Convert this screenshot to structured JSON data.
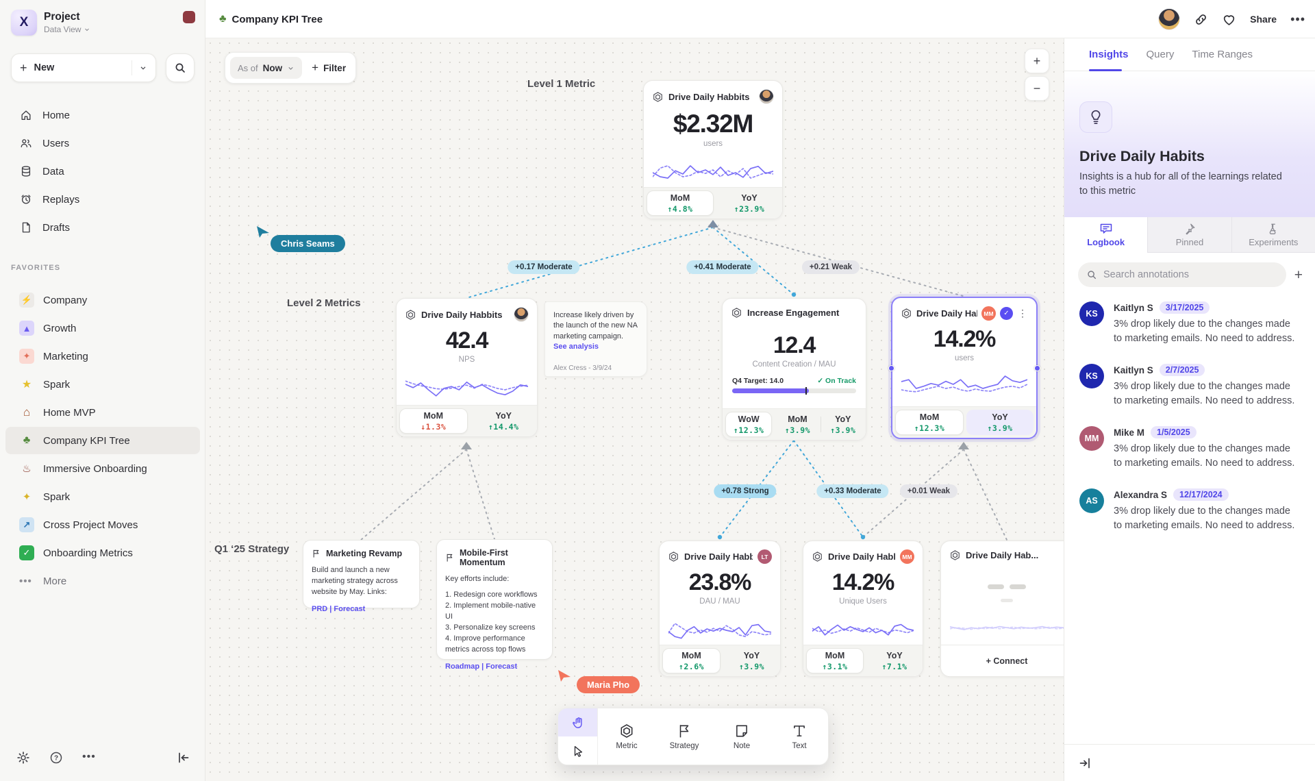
{
  "sidebar": {
    "project": "Project",
    "workspace": "Data View",
    "new_label": "New",
    "nav": [
      {
        "icon": "home",
        "label": "Home"
      },
      {
        "icon": "users",
        "label": "Users"
      },
      {
        "icon": "database",
        "label": "Data"
      },
      {
        "icon": "replay-clock",
        "label": "Replays"
      },
      {
        "icon": "draft-file",
        "label": "Drafts"
      }
    ],
    "favorites_header": "FAVORITES",
    "favorites": [
      {
        "icon": "lightning",
        "glyph": "⚡",
        "label": "Company"
      },
      {
        "icon": "rocket",
        "glyph": "▲",
        "label": "Growth"
      },
      {
        "icon": "confetti",
        "glyph": "✦",
        "label": "Marketing"
      },
      {
        "icon": "star",
        "glyph": "★",
        "label": "Spark"
      },
      {
        "icon": "house",
        "glyph": "⌂",
        "label": "Home MVP"
      },
      {
        "icon": "tree",
        "glyph": "♣",
        "label": "Company KPI Tree"
      },
      {
        "icon": "train",
        "glyph": "♨",
        "label": "Immersive Onboarding"
      },
      {
        "icon": "sparkles",
        "glyph": "✦",
        "label": "Spark"
      },
      {
        "icon": "arrow-up-right",
        "glyph": "↗",
        "label": "Cross Project Moves"
      },
      {
        "icon": "check",
        "glyph": "✓",
        "label": "Onboarding Metrics"
      }
    ],
    "more_label": "More"
  },
  "topbar": {
    "doc_icon_glyph": "♣",
    "doc_title": "Company KPI Tree",
    "share_label": "Share",
    "more_glyph": "•••"
  },
  "canvas": {
    "asof_prefix": "As of",
    "asof_value": "Now",
    "filter_label": "Filter",
    "filter_plus": "+",
    "zoom_in": "+",
    "zoom_out": "−",
    "section_labels": {
      "level1": "Level 1 Metric",
      "level2": "Level 2 Metrics",
      "q1": "Q1 ‘25 Strategy"
    },
    "edges": {
      "e1": "+0.17 Moderate",
      "e2": "+0.41 Moderate",
      "e3": "+0.21 Weak",
      "e4": "+0.78 Strong",
      "e5": "+0.33 Moderate",
      "e6": "+0.01 Weak"
    },
    "cursors": {
      "chris": {
        "name": "Chris Seams",
        "color": "#1f7e9e"
      },
      "maria": {
        "name": "Maria Pho",
        "color": "#f2745c"
      }
    },
    "cards": {
      "level1": {
        "title": "Drive Daily Habbits",
        "value": "$2.32M",
        "unit": "users",
        "mom_label": "MoM",
        "mom": "↑4.8%",
        "yoy_label": "YoY",
        "yoy": "↑23.9%",
        "spark": {
          "solid": [
            0.45,
            0.3,
            0.25,
            0.52,
            0.4,
            0.7,
            0.45,
            0.55,
            0.38,
            0.65,
            0.35,
            0.45,
            0.28,
            0.6,
            0.68,
            0.42,
            0.5
          ],
          "dotted": [
            0.3,
            0.62,
            0.7,
            0.45,
            0.3,
            0.35,
            0.5,
            0.42,
            0.55,
            0.3,
            0.52,
            0.38,
            0.6,
            0.25,
            0.35,
            0.45,
            0.4
          ]
        }
      },
      "nps": {
        "title": "Drive Daily Habbits",
        "value": "42.4",
        "unit": "NPS",
        "mom_label": "MoM",
        "mom": "↓1.3%",
        "yoy_label": "YoY",
        "yoy": "↑14.4%",
        "spark": {
          "solid": [
            0.6,
            0.48,
            0.65,
            0.4,
            0.18,
            0.45,
            0.52,
            0.4,
            0.68,
            0.48,
            0.58,
            0.42,
            0.28,
            0.22,
            0.35,
            0.58,
            0.52
          ],
          "dotted": [
            0.72,
            0.62,
            0.55,
            0.5,
            0.44,
            0.42,
            0.46,
            0.52,
            0.57,
            0.46,
            0.6,
            0.54,
            0.45,
            0.4,
            0.48,
            0.53,
            0.57
          ]
        }
      },
      "note": {
        "text": "Increase likely driven by the launch of the new NA marketing campaign.",
        "link": "See analysis",
        "byline": "Alex Cress - 3/9/24"
      },
      "engagement": {
        "title": "Increase Engagement",
        "value": "12.4",
        "unit": "Content Creation / MAU",
        "target": "Q4 Target: 14.0",
        "status": "✓ On Track",
        "progress_pct": 62,
        "wow_label": "WoW",
        "wow": "↑12.3%",
        "mom_label": "MoM",
        "mom": "↑3.9%",
        "yoy_label": "YoY",
        "yoy": "↑3.9%"
      },
      "selected": {
        "title": "Drive Daily Habb..",
        "badge": "MM",
        "check": "✓",
        "kebab": "⋮",
        "value": "14.2%",
        "unit": "users",
        "mom_label": "MoM",
        "mom": "↑12.3%",
        "yoy_label": "YoY",
        "yoy": "↑3.9%",
        "spark": {
          "solid": [
            0.65,
            0.72,
            0.4,
            0.48,
            0.58,
            0.52,
            0.66,
            0.55,
            0.72,
            0.45,
            0.52,
            0.4,
            0.48,
            0.55,
            0.85,
            0.68,
            0.62,
            0.72
          ],
          "dotted": [
            0.35,
            0.3,
            0.28,
            0.35,
            0.42,
            0.48,
            0.4,
            0.45,
            0.35,
            0.3,
            0.38,
            0.32,
            0.3,
            0.38,
            0.45,
            0.48,
            0.42,
            0.55
          ]
        }
      },
      "dau": {
        "title": "Drive Daily Habbits",
        "badge": "LT",
        "value": "23.8%",
        "unit": "DAU / MAU",
        "mom_label": "MoM",
        "mom": "↑2.6%",
        "yoy_label": "YoY",
        "yoy": "↑3.9%",
        "spark": {
          "solid": [
            0.4,
            0.22,
            0.16,
            0.45,
            0.58,
            0.35,
            0.5,
            0.42,
            0.52,
            0.45,
            0.4,
            0.55,
            0.28,
            0.62,
            0.66,
            0.42,
            0.38
          ],
          "dotted": [
            0.35,
            0.7,
            0.55,
            0.4,
            0.35,
            0.46,
            0.38,
            0.52,
            0.42,
            0.62,
            0.48,
            0.28,
            0.22,
            0.4,
            0.35,
            0.28,
            0.32
          ]
        }
      },
      "unique": {
        "title": "Drive Daily Habbits",
        "badge": "MM",
        "value": "14.2%",
        "unit": "Unique Users",
        "mom_label": "MoM",
        "mom": "↑3.1%",
        "yoy_label": "YoY",
        "yoy": "↑7.1%",
        "spark": {
          "solid": [
            0.42,
            0.58,
            0.28,
            0.48,
            0.64,
            0.45,
            0.58,
            0.48,
            0.4,
            0.54,
            0.36,
            0.45,
            0.28,
            0.6,
            0.66,
            0.5,
            0.45
          ],
          "dotted": [
            0.52,
            0.4,
            0.46,
            0.34,
            0.4,
            0.5,
            0.42,
            0.54,
            0.46,
            0.38,
            0.52,
            0.44,
            0.36,
            0.46,
            0.42,
            0.36,
            0.44
          ]
        }
      },
      "partial": {
        "title": "Drive Daily Hab...",
        "connect_label": "+ Connect",
        "spark": {
          "solid": [
            0.45,
            0.4,
            0.35,
            0.42,
            0.38,
            0.44,
            0.4,
            0.46,
            0.42,
            0.38,
            0.44,
            0.4,
            0.42,
            0.46,
            0.4,
            0.44,
            0.42
          ],
          "dotted": [
            0.38,
            0.42,
            0.4,
            0.36,
            0.42,
            0.38,
            0.44,
            0.38,
            0.42,
            0.44,
            0.38,
            0.42,
            0.38,
            0.4,
            0.44,
            0.38,
            0.4
          ]
        }
      },
      "marketing": {
        "title": "Marketing Revamp",
        "body": "Build and launch a new marketing strategy across website by May. Links:",
        "links": "PRD | Forecast"
      },
      "mobile": {
        "title": "Mobile-First Momentum",
        "intro": "Key efforts include:",
        "items": [
          "1.  Redesign core workflows",
          "2.  Implement mobile-native UI",
          "3.  Personalize key screens",
          "4.  Improve performance metrics across top flows"
        ],
        "links": "Roadmap | Forecast"
      }
    }
  },
  "toolbar": {
    "tools": [
      {
        "icon": "hexagon-metric",
        "label": "Metric"
      },
      {
        "icon": "flag",
        "label": "Strategy"
      },
      {
        "icon": "sticky-note",
        "label": "Note"
      },
      {
        "icon": "text-t",
        "label": "Text"
      }
    ]
  },
  "panel": {
    "tabs": [
      {
        "label": "Insights",
        "active": true
      },
      {
        "label": "Query",
        "active": false
      },
      {
        "label": "Time Ranges",
        "active": false
      }
    ],
    "title": "Drive Daily Habits",
    "description": "Insights is a hub for all of the learnings related to this metric",
    "subtabs": [
      {
        "icon": "speech-bubble",
        "label": "Logbook",
        "active": true
      },
      {
        "icon": "pin",
        "label": "Pinned",
        "active": false
      },
      {
        "icon": "flask",
        "label": "Experiments",
        "active": false
      }
    ],
    "search_placeholder": "Search annotations",
    "add_glyph": "+",
    "annotations": [
      {
        "initials": "KS",
        "name": "Kaitlyn S",
        "date": "3/17/2025",
        "color": "#1f27ae",
        "text": "3% drop likely due to the changes made to marketing emails. No need to address."
      },
      {
        "initials": "KS",
        "name": "Kaitlyn S",
        "date": "2/7/2025",
        "color": "#1f27ae",
        "text": "3% drop likely due to the changes made to marketing emails. No need to address."
      },
      {
        "initials": "MM",
        "name": "Mike M",
        "date": "1/5/2025",
        "color": "#b05a72",
        "text": "3% drop likely due to the changes made to marketing emails. No need to address."
      },
      {
        "initials": "AS",
        "name": "Alexandra S",
        "date": "12/17/2024",
        "color": "#17809c",
        "text": "3% drop likely due to the changes made to marketing emails. No need to address."
      }
    ]
  }
}
